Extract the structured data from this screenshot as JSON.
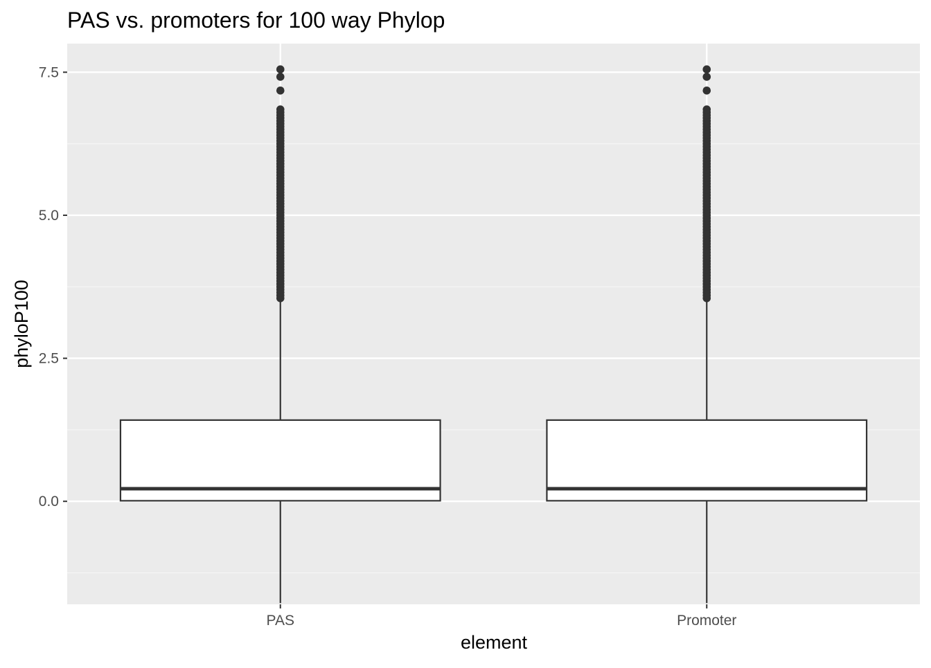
{
  "chart_data": {
    "type": "box",
    "title": "PAS vs. promoters for 100 way Phylop",
    "xlabel": "element",
    "ylabel": "phyloP100",
    "categories": [
      "PAS",
      "Promoter"
    ],
    "ylim": [
      -1.8,
      8.0
    ],
    "y_ticks": [
      0.0,
      2.5,
      5.0,
      7.5
    ],
    "y_tick_labels": [
      "0.0",
      "2.5",
      "5.0",
      "7.5"
    ],
    "grid": true,
    "legend": "none",
    "boxes": [
      {
        "category": "PAS",
        "whisker_low": -1.78,
        "q1": 0.01,
        "median": 0.22,
        "q3": 1.42,
        "whisker_high": 3.52,
        "outliers": [
          3.55,
          3.6,
          3.65,
          3.7,
          3.75,
          3.8,
          3.85,
          3.9,
          3.95,
          4.0,
          4.05,
          4.1,
          4.15,
          4.2,
          4.25,
          4.3,
          4.35,
          4.4,
          4.45,
          4.5,
          4.55,
          4.6,
          4.65,
          4.7,
          4.75,
          4.8,
          4.85,
          4.9,
          4.95,
          5.0,
          5.05,
          5.1,
          5.15,
          5.2,
          5.25,
          5.3,
          5.35,
          5.4,
          5.45,
          5.5,
          5.55,
          5.6,
          5.65,
          5.7,
          5.75,
          5.8,
          5.85,
          5.9,
          5.95,
          6.0,
          6.05,
          6.1,
          6.15,
          6.2,
          6.25,
          6.3,
          6.35,
          6.4,
          6.45,
          6.5,
          6.55,
          6.6,
          6.65,
          6.7,
          6.75,
          6.8,
          6.85,
          7.18,
          7.42,
          7.55
        ]
      },
      {
        "category": "Promoter",
        "whisker_low": -1.78,
        "q1": 0.01,
        "median": 0.22,
        "q3": 1.42,
        "whisker_high": 3.52,
        "outliers": [
          3.55,
          3.6,
          3.65,
          3.7,
          3.75,
          3.8,
          3.85,
          3.9,
          3.95,
          4.0,
          4.05,
          4.1,
          4.15,
          4.2,
          4.25,
          4.3,
          4.35,
          4.4,
          4.45,
          4.5,
          4.55,
          4.6,
          4.65,
          4.7,
          4.75,
          4.8,
          4.85,
          4.9,
          4.95,
          5.0,
          5.05,
          5.1,
          5.15,
          5.2,
          5.25,
          5.3,
          5.35,
          5.4,
          5.45,
          5.5,
          5.55,
          5.6,
          5.65,
          5.7,
          5.75,
          5.8,
          5.85,
          5.9,
          5.95,
          6.0,
          6.05,
          6.1,
          6.15,
          6.2,
          6.25,
          6.3,
          6.35,
          6.4,
          6.45,
          6.5,
          6.55,
          6.6,
          6.65,
          6.7,
          6.75,
          6.8,
          6.85,
          7.18,
          7.42,
          7.55
        ]
      }
    ],
    "colors": {
      "panel_background": "#ebebeb",
      "grid_major": "#ffffff",
      "grid_minor": "#f5f5f5",
      "box_fill": "#ffffff",
      "box_line": "#333333",
      "outlier": "#333333",
      "tick_label": "#4d4d4d",
      "title": "#000000"
    }
  }
}
